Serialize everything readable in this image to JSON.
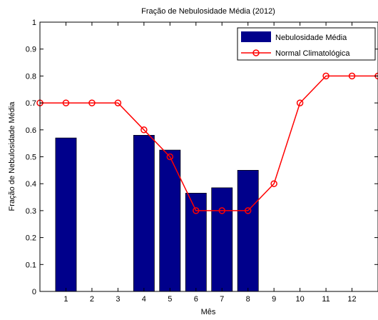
{
  "chart_data": {
    "type": "bar",
    "title": "Fração de Nebulosidade Média (2012)",
    "xlabel": "Mês",
    "ylabel": "Fração de Nebulosidade Média",
    "xlim": [
      0,
      13
    ],
    "ylim": [
      0,
      1
    ],
    "x_ticks": [
      1,
      2,
      3,
      4,
      5,
      6,
      7,
      8,
      9,
      10,
      11,
      12
    ],
    "y_ticks": [
      "0",
      "0.1",
      "0.2",
      "0.3",
      "0.4",
      "0.5",
      "0.6",
      "0.7",
      "0.8",
      "0.9",
      "1"
    ],
    "grid": false,
    "legend_position": "top-right",
    "series": [
      {
        "name": "Nebulosidade Média",
        "type": "bar",
        "color": "#00008b",
        "x": [
          1,
          4,
          5,
          6,
          7,
          8
        ],
        "values": [
          0.57,
          0.58,
          0.525,
          0.365,
          0.385,
          0.45
        ]
      },
      {
        "name": "Normal Climatológica",
        "type": "line",
        "color": "#ff0000",
        "marker": "circle",
        "x": [
          0,
          1,
          2,
          3,
          4,
          5,
          6,
          7,
          8,
          9,
          10,
          11,
          12,
          13
        ],
        "values": [
          0.7,
          0.7,
          0.7,
          0.7,
          0.6,
          0.5,
          0.3,
          0.3,
          0.3,
          0.4,
          0.7,
          0.8,
          0.8,
          0.8
        ]
      }
    ]
  }
}
